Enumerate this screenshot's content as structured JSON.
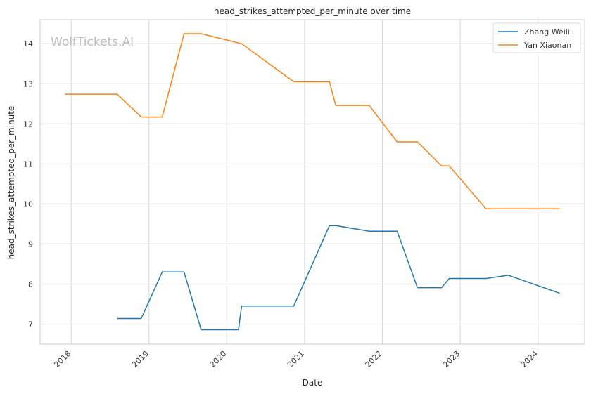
{
  "chart_data": {
    "type": "line",
    "title": "head_strikes_attempted_per_minute over time",
    "xlabel": "Date",
    "ylabel": "head_strikes_attempted_per_minute",
    "watermark": "WolfTickets.AI",
    "xlim": [
      2017.6,
      2024.6
    ],
    "ylim": [
      6.5,
      14.6
    ],
    "x_ticks": [
      2018,
      2019,
      2020,
      2021,
      2022,
      2023,
      2024
    ],
    "y_ticks": [
      7,
      8,
      9,
      10,
      11,
      12,
      13,
      14
    ],
    "grid": true,
    "legend_position": "top-right",
    "series": [
      {
        "name": "Zhang Weili",
        "color": "#1f77b4",
        "points": [
          [
            2018.59,
            7.14
          ],
          [
            2018.9,
            7.14
          ],
          [
            2019.17,
            8.3
          ],
          [
            2019.45,
            8.3
          ],
          [
            2019.67,
            6.86
          ],
          [
            2020.15,
            6.86
          ],
          [
            2020.19,
            7.45
          ],
          [
            2020.86,
            7.45
          ],
          [
            2021.32,
            9.46
          ],
          [
            2021.4,
            9.46
          ],
          [
            2021.83,
            9.32
          ],
          [
            2022.19,
            9.32
          ],
          [
            2022.45,
            7.91
          ],
          [
            2022.76,
            7.91
          ],
          [
            2022.86,
            8.14
          ],
          [
            2023.33,
            8.14
          ],
          [
            2023.62,
            8.22
          ],
          [
            2024.28,
            7.77
          ]
        ]
      },
      {
        "name": "Yan Xiaonan",
        "color": "#ff7f0e",
        "points": [
          [
            2017.92,
            12.74
          ],
          [
            2018.59,
            12.74
          ],
          [
            2018.9,
            12.17
          ],
          [
            2019.17,
            12.17
          ],
          [
            2019.45,
            14.25
          ],
          [
            2019.67,
            14.25
          ],
          [
            2020.19,
            14.0
          ],
          [
            2020.86,
            13.05
          ],
          [
            2021.32,
            13.05
          ],
          [
            2021.4,
            12.46
          ],
          [
            2021.83,
            12.46
          ],
          [
            2022.19,
            11.55
          ],
          [
            2022.45,
            11.55
          ],
          [
            2022.76,
            10.95
          ],
          [
            2022.86,
            10.95
          ],
          [
            2023.33,
            9.88
          ],
          [
            2023.62,
            9.88
          ],
          [
            2024.28,
            9.88
          ]
        ]
      }
    ]
  }
}
